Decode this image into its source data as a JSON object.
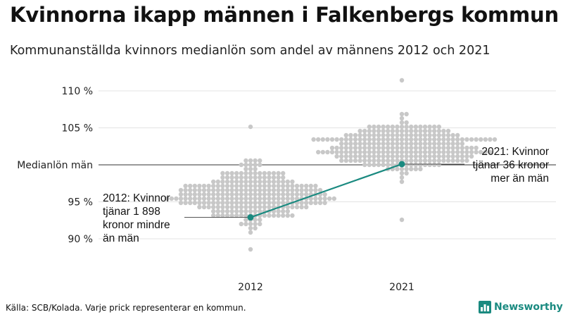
{
  "title": "Kvinnorna ikapp männen i Falkenbergs kommun",
  "subtitle": "Kommunanställda kvinnors medianlön som andel av männens 2012 och 2021",
  "chart_data": {
    "type": "scatter",
    "subtype": "beeswarm",
    "y_unit": "%",
    "ylim": [
      86,
      112
    ],
    "yticks": [
      {
        "value": 90,
        "label": "90 %"
      },
      {
        "value": 95,
        "label": "95 %"
      },
      {
        "value": 100,
        "label": "Medianlön män"
      },
      {
        "value": 105,
        "label": "105 %"
      },
      {
        "value": 110,
        "label": "110 %"
      }
    ],
    "reference_line": {
      "value": 100,
      "label": "Medianlön män"
    },
    "categories": [
      "2012",
      "2021"
    ],
    "swarms": [
      {
        "category": "2012",
        "min": 88.8,
        "max": 105.3,
        "center": 96.2,
        "spread": 2.6
      },
      {
        "category": "2021",
        "min": 92.6,
        "max": 111.4,
        "center": 102.4,
        "spread": 2.3
      }
    ],
    "highlight_series": {
      "name": "Falkenberg",
      "color": "#1a8a80",
      "points": [
        {
          "x": "2012",
          "y": 92.9
        },
        {
          "x": "2021",
          "y": 100.1
        }
      ]
    },
    "annotations": [
      {
        "category": "2012",
        "lines": [
          "2012: Kvinnor",
          "tjänar 1 898",
          "kronor mindre",
          "än män"
        ]
      },
      {
        "category": "2021",
        "lines": [
          "2021: Kvinnor",
          "tjänar 36 kronor",
          "mer än män"
        ]
      }
    ],
    "grid": true,
    "colors": {
      "dots": "#c8c8c8",
      "highlight": "#1a8a80",
      "grid": "#e3e3e3",
      "reference": "#333333"
    }
  },
  "source": "Källa: SCB/Kolada. Varje prick representerar en kommun.",
  "brand": {
    "name": "Newsworthy",
    "logo_icon": "bar-chart-logo-icon",
    "color": "#1a8a80"
  }
}
